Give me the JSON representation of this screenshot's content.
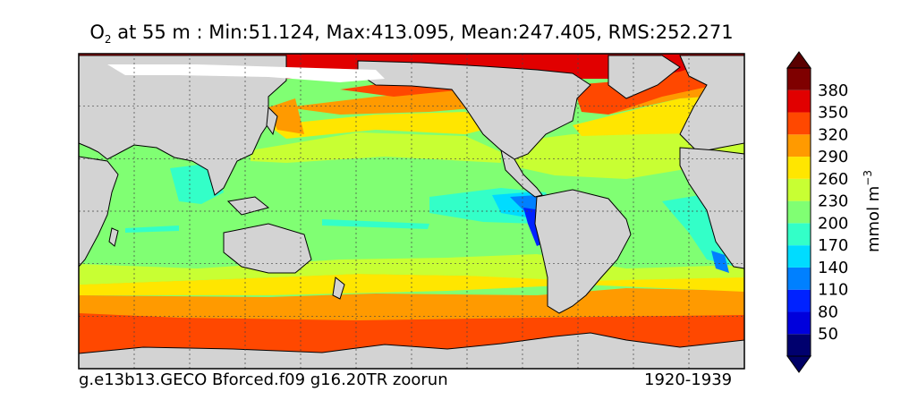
{
  "chart_data": {
    "type": "heatmap",
    "title": {
      "variable": "O",
      "variable_subscript": "2",
      "rest": " at 55 m : Min:51.124, Max:413.095, Mean:247.405, RMS:252.271"
    },
    "stats": {
      "depth_m": 55,
      "min": 51.124,
      "max": 413.095,
      "mean": 247.405,
      "rms": 252.271
    },
    "footer_left": "g.e13b13.GECO Bforced.f09 g16.20TR zoorun",
    "footer_right": "1920-1939",
    "colorbar": {
      "unit_label": "mmol m",
      "unit_exponent": "−3",
      "extend": "both",
      "levels": [
        20,
        50,
        80,
        110,
        140,
        170,
        200,
        230,
        260,
        290,
        320,
        350,
        380,
        410
      ],
      "tick_labels": [
        "50",
        "80",
        "110",
        "140",
        "170",
        "200",
        "230",
        "260",
        "290",
        "320",
        "350",
        "380"
      ],
      "colors": [
        "#00006e",
        "#0000dc",
        "#0022ff",
        "#0080ff",
        "#00dcff",
        "#33ffc8",
        "#80ff73",
        "#c8ff33",
        "#ffe600",
        "#ff9a00",
        "#ff4800",
        "#e10000",
        "#7f0000"
      ],
      "under_color": "#000066",
      "over_color": "#5a0000"
    },
    "land_color": "#d3d3d3",
    "ice_color": "#ffffff",
    "grid": true
  }
}
